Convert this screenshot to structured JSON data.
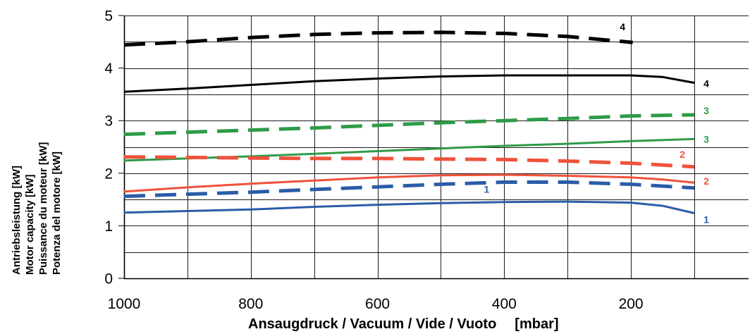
{
  "chart_data": {
    "type": "line",
    "xlabel": "Ansaugdruck / Vacuum / Vide / Vuoto",
    "xunit": "[mbar]",
    "ylabel_lines": [
      "Antriebsleistung [kW]",
      "Motor capacity [kW]",
      "Puissance du moteur [kW]",
      "Potenza del motore [kW]"
    ],
    "xlim": [
      1000,
      100
    ],
    "x_reversed": true,
    "ylim": [
      0,
      5
    ],
    "x_ticks": [
      1000,
      800,
      600,
      400,
      200
    ],
    "y_ticks": [
      0,
      1,
      2,
      3,
      4,
      5
    ],
    "grid": true,
    "series": [
      {
        "name": "4",
        "style": "dashed",
        "color": "#000000",
        "x": [
          1000,
          900,
          800,
          700,
          600,
          500,
          400,
          300,
          200
        ],
        "values": [
          4.44,
          4.5,
          4.58,
          4.64,
          4.67,
          4.68,
          4.66,
          4.6,
          4.49
        ]
      },
      {
        "name": "4",
        "style": "solid",
        "color": "#000000",
        "x": [
          1000,
          900,
          800,
          700,
          600,
          500,
          400,
          300,
          200,
          150,
          100
        ],
        "values": [
          3.55,
          3.61,
          3.68,
          3.75,
          3.8,
          3.84,
          3.86,
          3.86,
          3.86,
          3.83,
          3.72
        ]
      },
      {
        "name": "3",
        "style": "dashed",
        "color": "#2e9b48",
        "x": [
          1000,
          900,
          800,
          700,
          600,
          500,
          400,
          300,
          200,
          100
        ],
        "values": [
          2.74,
          2.78,
          2.82,
          2.86,
          2.91,
          2.96,
          3.0,
          3.04,
          3.09,
          3.11
        ]
      },
      {
        "name": "3",
        "style": "solid",
        "color": "#2e9b48",
        "x": [
          1000,
          900,
          800,
          700,
          600,
          500,
          400,
          300,
          200,
          100
        ],
        "values": [
          2.24,
          2.28,
          2.32,
          2.37,
          2.42,
          2.47,
          2.52,
          2.56,
          2.61,
          2.65
        ]
      },
      {
        "name": "2",
        "style": "dashed",
        "color": "#f0523a",
        "x": [
          1000,
          900,
          800,
          700,
          600,
          500,
          400,
          300,
          200,
          100
        ],
        "values": [
          2.31,
          2.3,
          2.29,
          2.28,
          2.28,
          2.27,
          2.26,
          2.23,
          2.19,
          2.12
        ]
      },
      {
        "name": "2",
        "style": "solid",
        "color": "#f0523a",
        "x": [
          1000,
          900,
          800,
          700,
          600,
          500,
          400,
          300,
          200,
          150,
          100
        ],
        "values": [
          1.65,
          1.73,
          1.8,
          1.86,
          1.92,
          1.96,
          1.97,
          1.95,
          1.92,
          1.88,
          1.82
        ]
      },
      {
        "name": "1",
        "style": "dashed",
        "color": "#2b5ca8",
        "x": [
          1000,
          900,
          800,
          700,
          600,
          500,
          400,
          300,
          200,
          100
        ],
        "values": [
          1.56,
          1.6,
          1.64,
          1.69,
          1.74,
          1.79,
          1.83,
          1.83,
          1.79,
          1.72
        ]
      },
      {
        "name": "1",
        "style": "solid",
        "color": "#2b5ca8",
        "x": [
          1000,
          900,
          800,
          700,
          600,
          500,
          400,
          300,
          200,
          150,
          100
        ],
        "values": [
          1.25,
          1.28,
          1.31,
          1.36,
          1.4,
          1.43,
          1.45,
          1.46,
          1.44,
          1.38,
          1.24
        ]
      }
    ]
  }
}
